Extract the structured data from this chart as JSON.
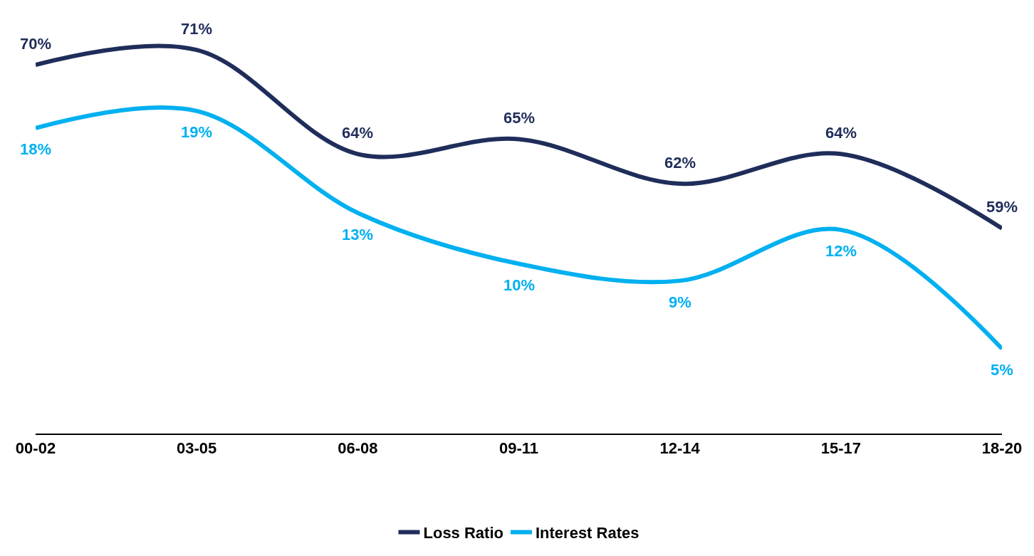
{
  "chart_data": {
    "type": "line",
    "categories": [
      "00-02",
      "03-05",
      "06-08",
      "09-11",
      "12-14",
      "15-17",
      "18-20"
    ],
    "series": [
      {
        "name": "Loss Ratio",
        "color": "#1f2d5a",
        "values": [
          70,
          71,
          64,
          65,
          62,
          64,
          59
        ],
        "value_labels": [
          "70%",
          "71%",
          "64%",
          "65%",
          "62%",
          "64%",
          "59%"
        ]
      },
      {
        "name": "Interest Rates",
        "color": "#00b0f0",
        "axis": "y2",
        "values": [
          18,
          19,
          13,
          10,
          9,
          12,
          5
        ],
        "value_labels": [
          "18%",
          "19%",
          "13%",
          "10%",
          "9%",
          "12%",
          "5%"
        ]
      }
    ],
    "tick_labels": "x",
    "legend": "bottom",
    "marker": "none",
    "line_style": "solid"
  }
}
